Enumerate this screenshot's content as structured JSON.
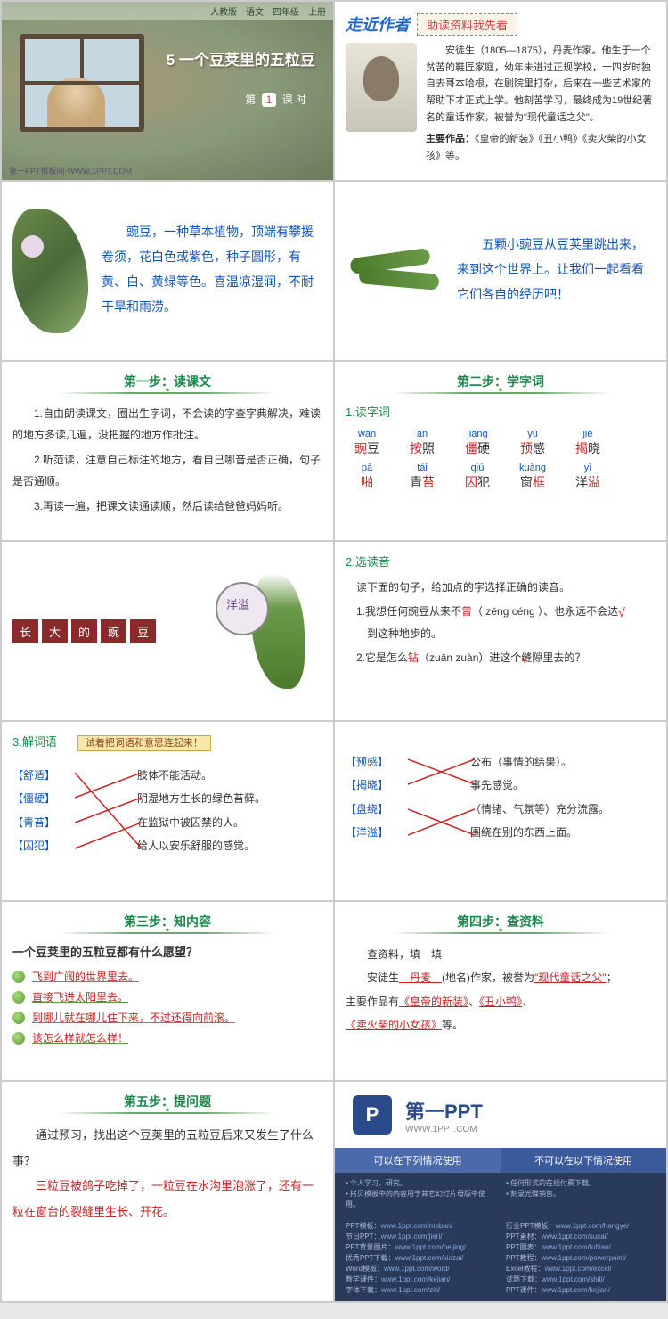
{
  "header": {
    "series": "人教版　语文　四年级　上册"
  },
  "s1": {
    "title": "5 一个豆荚里的五粒豆",
    "lesson_pre": "第",
    "lesson_num": "1",
    "lesson_post": "课 时",
    "footer": "第一PPT模板网-WWW.1PPT.COM"
  },
  "s2": {
    "approach": "走近作者",
    "banner": "助读资料我先看",
    "bio": "安徒生（1805—1875），丹麦作家。他生于一个贫苦的鞋匠家庭，幼年未进过正规学校，十四岁时独自去哥本哈根，在剧院里打杂，后来在一些艺术家的帮助下才正式上学。他刻苦学习，最终成为19世纪著名的童话作家，被誉为\"现代童话之父\"。",
    "works_label": "主要作品：",
    "works": "《皇帝的新装》《丑小鸭》《卖火柴的小女孩》等。"
  },
  "s3": {
    "text": "豌豆，一种草本植物，顶端有攀援卷须，花白色或紫色，种子圆形，有黄、白、黄绿等色。喜温凉湿润，不耐干旱和雨涝。"
  },
  "s4": {
    "text": "五颗小豌豆从豆荚里跳出来，来到这个世界上。让我们一起看看它们各自的经历吧！"
  },
  "s5": {
    "hdr": "第一步：读课文",
    "p1": "1.自由朗读课文，圈出生字词，不会读的字查字典解决，难读的地方多读几遍，没把握的地方作批注。",
    "p2": "2.听范读，注意自己标注的地方，看自己哪音是否正确，句子是否通顺。",
    "p3": "3.再读一遍，把课文读通读顺，然后读给爸爸妈妈听。"
  },
  "s6": {
    "hdr": "第二步：学字词",
    "sub": "1.读字词",
    "words": [
      {
        "py": "wān",
        "pre": "",
        "hl": "豌",
        "post": "豆"
      },
      {
        "py": "àn",
        "pre": "",
        "hl": "按",
        "post": "照"
      },
      {
        "py": "jiānɡ",
        "pre": "",
        "hl": "僵",
        "post": "硬"
      },
      {
        "py": "yù",
        "pre": "",
        "hl": "预",
        "post": "感"
      },
      {
        "py": "jiē",
        "pre": "",
        "hl": "揭",
        "post": "晓"
      },
      {
        "py": "pā",
        "pre": "",
        "hl": "啪",
        "post": ""
      },
      {
        "py": "tái",
        "pre": "青",
        "hl": "苔",
        "post": ""
      },
      {
        "py": "qiú",
        "pre": "",
        "hl": "囚",
        "post": "犯"
      },
      {
        "py": "kuànɡ",
        "pre": "窗",
        "hl": "框",
        "post": ""
      },
      {
        "py": "yì",
        "pre": "洋",
        "hl": "溢",
        "post": ""
      }
    ]
  },
  "s7": {
    "t1": "长",
    "t2": "大",
    "t3": "的",
    "t4": "豌",
    "t5": "豆",
    "label": "洋溢"
  },
  "s8": {
    "sub": "2.选读音",
    "intro": "读下面的句子，给加点的字选择正确的读音。",
    "l1a": "1.我想任何豌豆从来不",
    "l1b": "曾",
    "l1c": "（ zēnɡ  cénɡ ）、也永远不会达",
    "l1d": "到这种地步的。",
    "l2a": "2.它是怎么",
    "l2b": "钻",
    "l2c": "（zuān  zuàn）进这个缝隙里去的？"
  },
  "s9": {
    "sub": "3.解词语",
    "hint": "试着把词语和意思连起来！",
    "terms": [
      "舒适",
      "僵硬",
      "青苔",
      "囚犯"
    ],
    "defs": [
      "肢体不能活动。",
      "阴湿地方生长的绿色苔藓。",
      "在监狱中被囚禁的人。",
      "给人以安乐舒服的感觉。"
    ]
  },
  "s10": {
    "terms": [
      "预感",
      "揭晓",
      "盘绕",
      "洋溢"
    ],
    "defs": [
      "公布（事情的结果）。",
      "事先感觉。",
      "（情绪、气氛等）充分流露。",
      "围绕在别的东西上面。"
    ]
  },
  "s11": {
    "hdr": "第三步：知内容",
    "q": "一个豆荚里的五粒豆都有什么愿望？",
    "w1": "飞到广阔的世界里去。",
    "w2": "直接飞进太阳里去。",
    "w3": "到哪儿就在哪儿住下来，不过还得向前滚。",
    "w4": "该怎么样就怎么样！"
  },
  "s12": {
    "hdr": "第四步：查资料",
    "intro": "查资料，填一填",
    "l1a": "安徒生",
    "f1": "　丹麦　",
    "l1b": "(地名)作家，被誉为",
    "f2": "\"现代童话之父\"",
    "l1c": "；",
    "l2a": "主要作品有",
    "f3": "《皇帝的新装》",
    "l2b": "、",
    "f4": "《丑小鸭》",
    "l2c": "、",
    "f5": "《卖火柴的小女孩》",
    "l3": "等。"
  },
  "s13": {
    "hdr": "第五步：提问题",
    "q": "通过预习，找出这个豆荚里的五粒豆后来又发生了什么事？",
    "ans": "三粒豆被鸽子吃掉了，一粒豆在水沟里泡涨了，还有一粒在窗台的裂缝里生长、开花。"
  },
  "s14": {
    "brand": "第一PPT",
    "url": "WWW.1PPT.COM",
    "ok": "可以在下列情况使用",
    "no": "不可以在以下情况使用",
    "ok_notes": [
      "个人学习、研究。",
      "拷贝模板中的内容用于其它幻灯片母版中使用。"
    ],
    "no_notes": [
      "任何形式的在线付费下载。",
      "刻录光碟销售。"
    ],
    "links_left": [
      {
        "k": "PPT模板：",
        "v": "www.1ppt.com/moban/"
      },
      {
        "k": "节日PPT：",
        "v": "www.1ppt.com/jieri/"
      },
      {
        "k": "PPT背景图片：",
        "v": "www.1ppt.com/beijing/"
      },
      {
        "k": "优秀PPT下载：",
        "v": "www.1ppt.com/xiazai/"
      },
      {
        "k": "Word模板：",
        "v": "www.1ppt.com/word/"
      },
      {
        "k": "教学课件：",
        "v": "www.1ppt.com/kejian/"
      },
      {
        "k": "字体下载：",
        "v": "www.1ppt.com/ziti/"
      }
    ],
    "links_right": [
      {
        "k": "行业PPT模板：",
        "v": "www.1ppt.com/hangye/"
      },
      {
        "k": "PPT素材：",
        "v": "www.1ppt.com/sucai/"
      },
      {
        "k": "PPT图表：",
        "v": "www.1ppt.com/tubiao/"
      },
      {
        "k": "PPT教程：",
        "v": "www.1ppt.com/powerpoint/"
      },
      {
        "k": "Excel教程：",
        "v": "www.1ppt.com/excel/"
      },
      {
        "k": "试题下载：",
        "v": "www.1ppt.com/shiti/"
      },
      {
        "k": "PPT课件：",
        "v": "www.1ppt.com/kejian/"
      }
    ]
  }
}
